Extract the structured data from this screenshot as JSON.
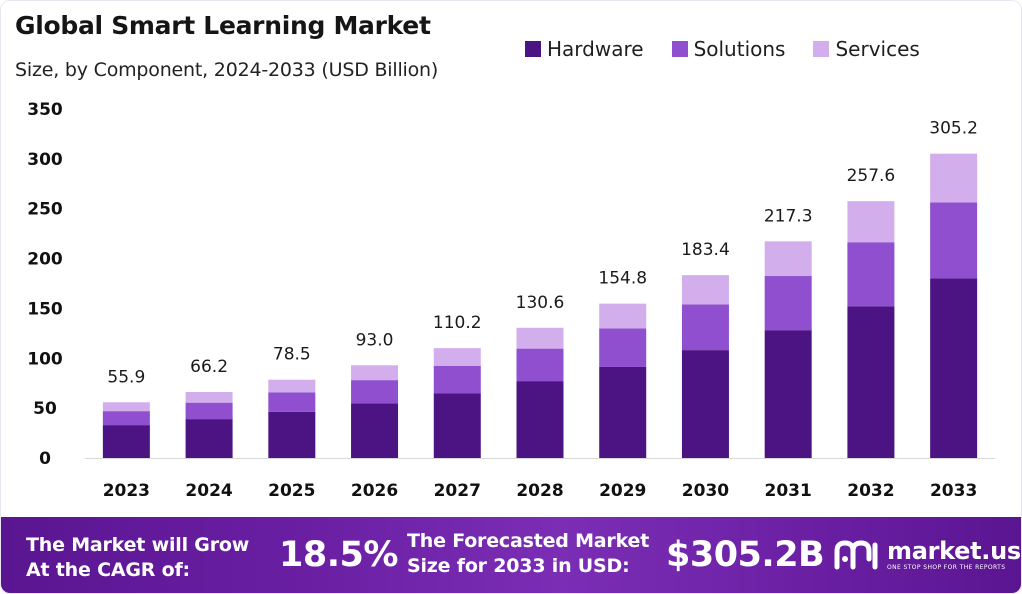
{
  "header": {
    "title": "Global Smart Learning Market",
    "subtitle": "Size, by Component, 2024-2033 (USD Billion)"
  },
  "legend": [
    {
      "label": "Hardware",
      "color": "#4c1483"
    },
    {
      "label": "Solutions",
      "color": "#8f4fcf"
    },
    {
      "label": "Services",
      "color": "#d3aeec"
    }
  ],
  "chart_data": {
    "type": "bar",
    "stacked": true,
    "title": "Global Smart Learning Market",
    "subtitle": "Size, by Component, 2024-2033 (USD Billion)",
    "categories": [
      "2023",
      "2024",
      "2025",
      "2026",
      "2027",
      "2028",
      "2029",
      "2030",
      "2031",
      "2032",
      "2033"
    ],
    "series": [
      {
        "name": "Hardware",
        "color": "#4c1483",
        "values": [
          33.0,
          39.0,
          46.3,
          54.9,
          65.0,
          77.1,
          91.3,
          108.2,
          128.2,
          152.0,
          180.1
        ]
      },
      {
        "name": "Solutions",
        "color": "#8f4fcf",
        "values": [
          14.0,
          16.5,
          19.6,
          23.2,
          27.5,
          32.6,
          38.7,
          45.9,
          54.3,
          64.4,
          76.3
        ]
      },
      {
        "name": "Services",
        "color": "#d3aeec",
        "values": [
          8.9,
          10.7,
          12.6,
          14.9,
          17.7,
          20.9,
          24.8,
          29.3,
          34.8,
          41.2,
          48.8
        ]
      }
    ],
    "totals": [
      "55.9",
      "66.2",
      "78.5",
      "93.0",
      "110.2",
      "130.6",
      "154.8",
      "183.4",
      "217.3",
      "257.6",
      "305.2"
    ],
    "yticks": [
      "0",
      "50",
      "100",
      "150",
      "200",
      "250",
      "300",
      "350"
    ],
    "ylim": [
      0,
      350
    ],
    "grid": false,
    "legend_position": "top-right"
  },
  "footer": {
    "cagr_line1": "The Market will Grow",
    "cagr_line2": "At the CAGR of:",
    "cagr_value": "18.5%",
    "forecast_line1": "The Forecasted Market",
    "forecast_line2": "Size for 2033 in USD:",
    "forecast_value": "$305.2B",
    "brand_name": "market.us",
    "brand_tagline": "ONE STOP SHOP FOR THE REPORTS"
  }
}
